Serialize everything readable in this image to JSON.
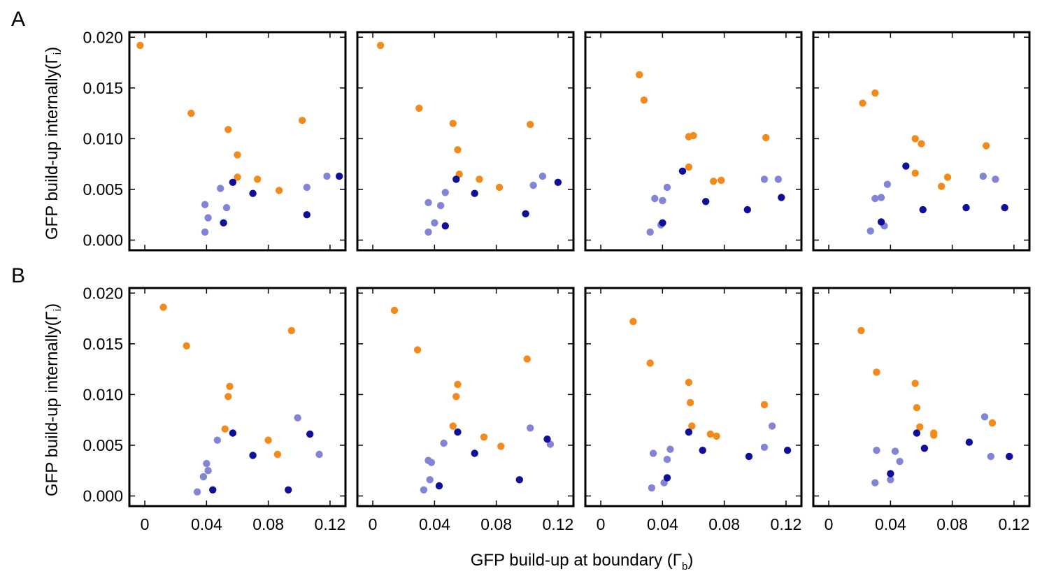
{
  "figure": {
    "panel_letters": [
      "A",
      "B"
    ],
    "ylabel_main": "GFP build-up internally(",
    "ylabel_symbol": "Γ",
    "ylabel_sub": "i",
    "ylabel_close": ")",
    "xlabel_main": "GFP build-up at boundary (",
    "xlabel_symbol": "Γ",
    "xlabel_sub": "b",
    "xlabel_close": ")"
  },
  "colors": {
    "orange": "#f28a1c",
    "light_blue": "#8484d6",
    "dark_blue": "#0f0f9a"
  },
  "chart_data": [
    {
      "type": "scatter",
      "row": "A",
      "col": 1,
      "xlim": [
        -0.01,
        0.13
      ],
      "ylim": [
        -0.001,
        0.0205
      ],
      "xticks": [
        "0",
        "0.04",
        "0.08",
        "0.12"
      ],
      "yticks": [
        "0.000",
        "0.005",
        "0.010",
        "0.015",
        "0.020"
      ],
      "series": [
        {
          "color": "orange",
          "points": [
            [
              -0.003,
              0.0192
            ],
            [
              0.03,
              0.0125
            ],
            [
              0.054,
              0.0109
            ],
            [
              0.06,
              0.0084
            ],
            [
              0.06,
              0.0062
            ],
            [
              0.073,
              0.006
            ],
            [
              0.087,
              0.0049
            ],
            [
              0.102,
              0.0118
            ]
          ]
        },
        {
          "color": "light_blue",
          "points": [
            [
              0.049,
              0.0051
            ],
            [
              0.039,
              0.0035
            ],
            [
              0.041,
              0.0022
            ],
            [
              0.039,
              0.0008
            ],
            [
              0.053,
              0.0032
            ],
            [
              0.105,
              0.0052
            ],
            [
              0.118,
              0.0063
            ]
          ]
        },
        {
          "color": "dark_blue",
          "points": [
            [
              0.057,
              0.0057
            ],
            [
              0.07,
              0.0046
            ],
            [
              0.051,
              0.0017
            ],
            [
              0.105,
              0.0025
            ],
            [
              0.126,
              0.0063
            ]
          ]
        }
      ]
    },
    {
      "type": "scatter",
      "row": "A",
      "col": 2,
      "xlim": [
        -0.01,
        0.13
      ],
      "ylim": [
        -0.001,
        0.0205
      ],
      "xticks": [
        "0",
        "0.04",
        "0.08",
        "0.12"
      ],
      "yticks": [],
      "series": [
        {
          "color": "orange",
          "points": [
            [
              0.005,
              0.0192
            ],
            [
              0.03,
              0.013
            ],
            [
              0.052,
              0.0115
            ],
            [
              0.055,
              0.0089
            ],
            [
              0.056,
              0.0065
            ],
            [
              0.069,
              0.006
            ],
            [
              0.082,
              0.0052
            ],
            [
              0.102,
              0.0114
            ]
          ]
        },
        {
          "color": "light_blue",
          "points": [
            [
              0.036,
              0.0037
            ],
            [
              0.044,
              0.0034
            ],
            [
              0.047,
              0.0047
            ],
            [
              0.04,
              0.0017
            ],
            [
              0.036,
              0.0008
            ],
            [
              0.11,
              0.0063
            ],
            [
              0.104,
              0.0054
            ]
          ]
        },
        {
          "color": "dark_blue",
          "points": [
            [
              0.054,
              0.006
            ],
            [
              0.066,
              0.0046
            ],
            [
              0.047,
              0.0014
            ],
            [
              0.099,
              0.0026
            ],
            [
              0.12,
              0.0057
            ]
          ]
        }
      ]
    },
    {
      "type": "scatter",
      "row": "A",
      "col": 3,
      "xlim": [
        -0.01,
        0.13
      ],
      "ylim": [
        -0.001,
        0.0205
      ],
      "xticks": [
        "0",
        "0.04",
        "0.08",
        "0.12"
      ],
      "yticks": [],
      "series": [
        {
          "color": "orange",
          "points": [
            [
              0.025,
              0.0163
            ],
            [
              0.028,
              0.0138
            ],
            [
              0.057,
              0.0102
            ],
            [
              0.06,
              0.0103
            ],
            [
              0.057,
              0.0072
            ],
            [
              0.073,
              0.0058
            ],
            [
              0.078,
              0.0059
            ],
            [
              0.107,
              0.0101
            ]
          ]
        },
        {
          "color": "light_blue",
          "points": [
            [
              0.035,
              0.0041
            ],
            [
              0.04,
              0.0039
            ],
            [
              0.043,
              0.0052
            ],
            [
              0.039,
              0.0015
            ],
            [
              0.032,
              0.0008
            ],
            [
              0.106,
              0.006
            ],
            [
              0.115,
              0.006
            ]
          ]
        },
        {
          "color": "dark_blue",
          "points": [
            [
              0.053,
              0.0068
            ],
            [
              0.068,
              0.0038
            ],
            [
              0.04,
              0.0017
            ],
            [
              0.095,
              0.003
            ],
            [
              0.117,
              0.0042
            ]
          ]
        }
      ]
    },
    {
      "type": "scatter",
      "row": "A",
      "col": 4,
      "xlim": [
        -0.01,
        0.13
      ],
      "ylim": [
        -0.001,
        0.0205
      ],
      "xticks": [
        "0",
        "0.04",
        "0.08",
        "0.12"
      ],
      "yticks": [],
      "series": [
        {
          "color": "orange",
          "points": [
            [
              0.022,
              0.0135
            ],
            [
              0.03,
              0.0145
            ],
            [
              0.056,
              0.01
            ],
            [
              0.06,
              0.0095
            ],
            [
              0.056,
              0.0066
            ],
            [
              0.073,
              0.0053
            ],
            [
              0.077,
              0.0062
            ],
            [
              0.102,
              0.0093
            ]
          ]
        },
        {
          "color": "light_blue",
          "points": [
            [
              0.03,
              0.0041
            ],
            [
              0.034,
              0.0042
            ],
            [
              0.038,
              0.0055
            ],
            [
              0.036,
              0.0014
            ],
            [
              0.027,
              0.0009
            ],
            [
              0.1,
              0.0063
            ],
            [
              0.108,
              0.006
            ]
          ]
        },
        {
          "color": "dark_blue",
          "points": [
            [
              0.05,
              0.0073
            ],
            [
              0.061,
              0.003
            ],
            [
              0.034,
              0.0018
            ],
            [
              0.089,
              0.0032
            ],
            [
              0.114,
              0.0032
            ]
          ]
        }
      ]
    },
    {
      "type": "scatter",
      "row": "B",
      "col": 1,
      "xlim": [
        -0.01,
        0.13
      ],
      "ylim": [
        -0.001,
        0.0205
      ],
      "xticks": [
        "0",
        "0.04",
        "0.08",
        "0.12"
      ],
      "yticks": [
        "0.000",
        "0.005",
        "0.010",
        "0.015",
        "0.020"
      ],
      "series": [
        {
          "color": "orange",
          "points": [
            [
              0.012,
              0.0186
            ],
            [
              0.027,
              0.0148
            ],
            [
              0.055,
              0.0108
            ],
            [
              0.054,
              0.0098
            ],
            [
              0.052,
              0.0066
            ],
            [
              0.08,
              0.0055
            ],
            [
              0.086,
              0.0041
            ],
            [
              0.095,
              0.0163
            ]
          ]
        },
        {
          "color": "light_blue",
          "points": [
            [
              0.04,
              0.0032
            ],
            [
              0.041,
              0.0025
            ],
            [
              0.038,
              0.0019
            ],
            [
              0.034,
              0.0004
            ],
            [
              0.047,
              0.0055
            ],
            [
              0.099,
              0.0077
            ],
            [
              0.113,
              0.0041
            ]
          ]
        },
        {
          "color": "dark_blue",
          "points": [
            [
              0.057,
              0.0062
            ],
            [
              0.07,
              0.004
            ],
            [
              0.044,
              0.0006
            ],
            [
              0.093,
              0.0006
            ],
            [
              0.107,
              0.0061
            ]
          ]
        }
      ]
    },
    {
      "type": "scatter",
      "row": "B",
      "col": 2,
      "xlim": [
        -0.01,
        0.13
      ],
      "ylim": [
        -0.001,
        0.0205
      ],
      "xticks": [
        "0",
        "0.04",
        "0.08",
        "0.12"
      ],
      "yticks": [],
      "series": [
        {
          "color": "orange",
          "points": [
            [
              0.014,
              0.0183
            ],
            [
              0.029,
              0.0144
            ],
            [
              0.055,
              0.011
            ],
            [
              0.054,
              0.0098
            ],
            [
              0.052,
              0.0069
            ],
            [
              0.072,
              0.0058
            ],
            [
              0.083,
              0.0049
            ],
            [
              0.1,
              0.0135
            ]
          ]
        },
        {
          "color": "light_blue",
          "points": [
            [
              0.036,
              0.0035
            ],
            [
              0.038,
              0.0033
            ],
            [
              0.046,
              0.0052
            ],
            [
              0.037,
              0.0016
            ],
            [
              0.033,
              0.0006
            ],
            [
              0.102,
              0.0067
            ],
            [
              0.115,
              0.0051
            ]
          ]
        },
        {
          "color": "dark_blue",
          "points": [
            [
              0.055,
              0.0063
            ],
            [
              0.066,
              0.0042
            ],
            [
              0.043,
              0.001
            ],
            [
              0.095,
              0.0016
            ],
            [
              0.113,
              0.0056
            ]
          ]
        }
      ]
    },
    {
      "type": "scatter",
      "row": "B",
      "col": 3,
      "xlim": [
        -0.01,
        0.13
      ],
      "ylim": [
        -0.001,
        0.0205
      ],
      "xticks": [
        "0",
        "0.04",
        "0.08",
        "0.12"
      ],
      "yticks": [],
      "series": [
        {
          "color": "orange",
          "points": [
            [
              0.021,
              0.0172
            ],
            [
              0.032,
              0.0131
            ],
            [
              0.057,
              0.0112
            ],
            [
              0.058,
              0.0092
            ],
            [
              0.059,
              0.0069
            ],
            [
              0.071,
              0.0061
            ],
            [
              0.075,
              0.0059
            ],
            [
              0.106,
              0.009
            ]
          ]
        },
        {
          "color": "light_blue",
          "points": [
            [
              0.034,
              0.0042
            ],
            [
              0.043,
              0.0036
            ],
            [
              0.045,
              0.0046
            ],
            [
              0.041,
              0.0013
            ],
            [
              0.033,
              0.0008
            ],
            [
              0.106,
              0.0048
            ],
            [
              0.111,
              0.0069
            ]
          ]
        },
        {
          "color": "dark_blue",
          "points": [
            [
              0.057,
              0.0063
            ],
            [
              0.066,
              0.0045
            ],
            [
              0.043,
              0.0018
            ],
            [
              0.096,
              0.0039
            ],
            [
              0.121,
              0.0045
            ]
          ]
        }
      ]
    },
    {
      "type": "scatter",
      "row": "B",
      "col": 4,
      "xlim": [
        -0.01,
        0.13
      ],
      "ylim": [
        -0.001,
        0.0205
      ],
      "xticks": [
        "0",
        "0.04",
        "0.08",
        "0.12"
      ],
      "yticks": [],
      "series": [
        {
          "color": "orange",
          "points": [
            [
              0.021,
              0.0163
            ],
            [
              0.031,
              0.0122
            ],
            [
              0.056,
              0.0111
            ],
            [
              0.057,
              0.0087
            ],
            [
              0.059,
              0.0068
            ],
            [
              0.068,
              0.006
            ],
            [
              0.068,
              0.0062
            ],
            [
              0.106,
              0.0072
            ]
          ]
        },
        {
          "color": "light_blue",
          "points": [
            [
              0.031,
              0.0045
            ],
            [
              0.043,
              0.0044
            ],
            [
              0.046,
              0.0034
            ],
            [
              0.04,
              0.0016
            ],
            [
              0.03,
              0.0013
            ],
            [
              0.101,
              0.0078
            ],
            [
              0.105,
              0.0039
            ]
          ]
        },
        {
          "color": "dark_blue",
          "points": [
            [
              0.057,
              0.0062
            ],
            [
              0.062,
              0.0047
            ],
            [
              0.04,
              0.0022
            ],
            [
              0.091,
              0.0053
            ],
            [
              0.117,
              0.0039
            ]
          ]
        }
      ]
    }
  ]
}
